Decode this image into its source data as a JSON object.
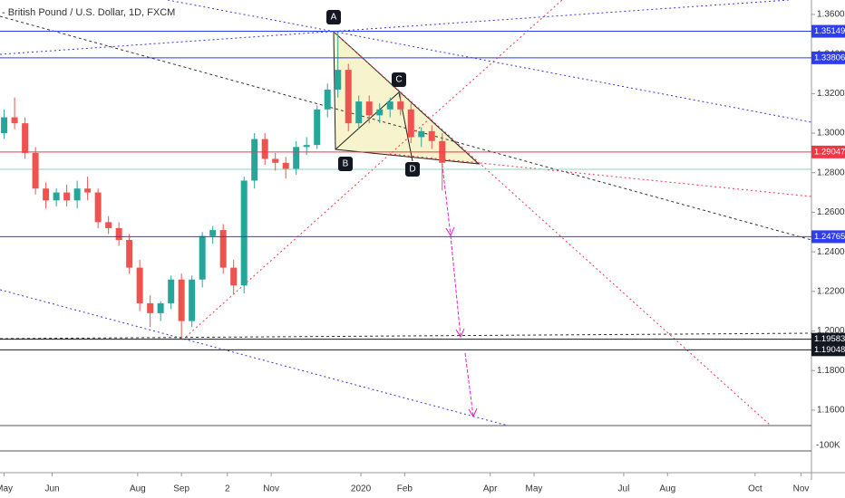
{
  "chart_data": {
    "type": "candlestick",
    "title": "- British Pound / U.S. Dollar, 1D, FXCM",
    "volume_label": "-100K",
    "x": [
      0,
      5,
      10,
      15,
      20,
      25,
      30,
      35,
      40,
      45,
      50,
      55,
      60,
      65,
      70,
      75,
      80,
      85,
      90,
      95,
      100,
      105,
      110,
      115,
      120,
      125,
      130,
      135,
      140,
      145,
      150,
      155,
      160,
      165,
      170,
      175,
      180,
      185,
      190,
      195,
      200,
      205,
      210
    ],
    "open": [
      1.3,
      1.308,
      1.305,
      1.29,
      1.272,
      1.266,
      1.27,
      1.266,
      1.272,
      1.27,
      1.255,
      1.252,
      1.246,
      1.232,
      1.214,
      1.209,
      1.214,
      1.226,
      1.205,
      1.226,
      1.248,
      1.251,
      1.232,
      1.223,
      1.276,
      1.297,
      1.287,
      1.285,
      1.282,
      1.293,
      1.294,
      1.312,
      1.322,
      1.332,
      1.305,
      1.316,
      1.309,
      1.312,
      1.316,
      1.312,
      1.298,
      1.301,
      1.296
    ],
    "high": [
      1.312,
      1.318,
      1.308,
      1.293,
      1.275,
      1.272,
      1.274,
      1.276,
      1.278,
      1.272,
      1.258,
      1.255,
      1.249,
      1.236,
      1.218,
      1.215,
      1.228,
      1.229,
      1.228,
      1.25,
      1.253,
      1.254,
      1.236,
      1.278,
      1.3,
      1.3,
      1.29,
      1.288,
      1.296,
      1.298,
      1.314,
      1.325,
      1.351,
      1.335,
      1.319,
      1.319,
      1.315,
      1.318,
      1.321,
      1.315,
      1.303,
      1.304,
      1.3
    ],
    "low": [
      1.297,
      1.302,
      1.287,
      1.269,
      1.262,
      1.263,
      1.263,
      1.262,
      1.266,
      1.252,
      1.249,
      1.243,
      1.229,
      1.21,
      1.202,
      1.205,
      1.211,
      1.196,
      1.202,
      1.222,
      1.244,
      1.229,
      1.219,
      1.219,
      1.272,
      1.284,
      1.281,
      1.277,
      1.279,
      1.289,
      1.292,
      1.308,
      1.318,
      1.301,
      1.302,
      1.305,
      1.305,
      1.308,
      1.309,
      1.295,
      1.293,
      1.292,
      1.271
    ],
    "close": [
      1.308,
      1.305,
      1.29,
      1.272,
      1.266,
      1.27,
      1.266,
      1.272,
      1.27,
      1.255,
      1.252,
      1.246,
      1.232,
      1.214,
      1.209,
      1.214,
      1.226,
      1.205,
      1.226,
      1.248,
      1.251,
      1.232,
      1.223,
      1.276,
      1.297,
      1.287,
      1.285,
      1.282,
      1.293,
      1.294,
      1.312,
      1.322,
      1.332,
      1.305,
      1.316,
      1.309,
      1.312,
      1.316,
      1.312,
      1.298,
      1.301,
      1.296,
      1.285
    ],
    "up_color": "#26a69a",
    "down_color": "#ef5350",
    "xlim": [
      -2,
      387
    ],
    "xticks": [
      {
        "value": 0,
        "label": "May"
      },
      {
        "value": 23,
        "label": "Jun"
      },
      {
        "value": 64,
        "label": "Aug"
      },
      {
        "value": 85,
        "label": "Sep"
      },
      {
        "value": 107,
        "label": "2"
      },
      {
        "value": 128,
        "label": "Nov"
      },
      {
        "value": 171,
        "label": "2020"
      },
      {
        "value": 192,
        "label": "Feb"
      },
      {
        "value": 233,
        "label": "Apr"
      },
      {
        "value": 254,
        "label": "May"
      },
      {
        "value": 297,
        "label": "Jul"
      },
      {
        "value": 318,
        "label": "Aug"
      },
      {
        "value": 360,
        "label": "Oct"
      },
      {
        "value": 382,
        "label": "Nov"
      }
    ],
    "ylim": [
      1.1293,
      1.3673
    ],
    "yticks": [
      {
        "value": 1.16,
        "label": "1.16000"
      },
      {
        "value": 1.18,
        "label": "1.18000"
      },
      {
        "value": 1.2,
        "label": "1.20000"
      },
      {
        "value": 1.22,
        "label": "1.22000"
      },
      {
        "value": 1.24,
        "label": "1.24000"
      },
      {
        "value": 1.26,
        "label": "1.26000"
      },
      {
        "value": 1.28,
        "label": "1.28000"
      },
      {
        "value": 1.3,
        "label": "1.30000"
      },
      {
        "value": 1.32,
        "label": "1.32000"
      },
      {
        "value": 1.34,
        "label": "1.34000"
      },
      {
        "value": 1.36,
        "label": "1.36000"
      }
    ],
    "levels": [
      {
        "value": 1.35149,
        "color": "#2f3cf0"
      },
      {
        "value": 1.33806,
        "color": "#2f3cf0"
      },
      {
        "value": 1.29047,
        "color": "#f23645"
      },
      {
        "value": 1.24765,
        "color": "#2f3cf0"
      },
      {
        "value": 1.19583,
        "color": "#131722"
      },
      {
        "value": 1.19048,
        "color": "#131722"
      }
    ],
    "points": [
      "A",
      "B",
      "C",
      "D"
    ]
  }
}
